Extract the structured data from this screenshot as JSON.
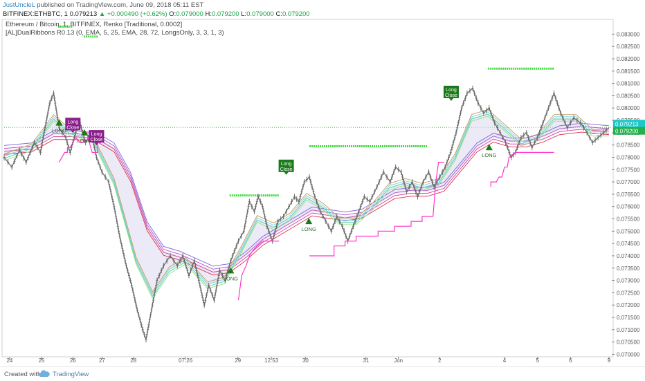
{
  "header": {
    "author": "JustUncleL",
    "published": "published on TradingView.com, June 09, 2018 05:11 EST",
    "symbol": "BITFINEX:ETHBTC, 1",
    "price": "0.079213",
    "change": "+0.000490 (+0.62%)",
    "ohlc": [
      {
        "label": "O:",
        "value": "0.079000"
      },
      {
        "label": "H:",
        "value": "0.079200"
      },
      {
        "label": "L:",
        "value": "0.079000"
      },
      {
        "label": "C:",
        "value": "0.079200"
      }
    ]
  },
  "legend": {
    "line1": "Ethereum / Bitcoin, 1, BITFINEX, Renko [Traditional, 0.0002]",
    "line2": "[AL]DualRibbons R0.13 (0, EMA, 5, 25, EMA, 28, 72, LongsOnly, 3, 3, 1, 3)"
  },
  "footer": {
    "created_with": "Created with",
    "brand": "TradingView"
  },
  "colors": {
    "price_tag": "#1ec8c8",
    "current_tag": "#22b14c",
    "candle": "#6b6b6b",
    "upper_band": "#ff33cc",
    "long_marker": "#1b7a1b",
    "close_marker_purple": "#8b1f8b",
    "close_marker_green": "#1b7a1b",
    "level_green": "#3fd93f"
  },
  "chart_data": {
    "type": "line",
    "title": "Ethereum / Bitcoin, 1, BITFINEX, Renko [Traditional, 0.0002]",
    "ylim": [
      0.0699,
      0.0836
    ],
    "y_ticks": [
      "0.083000",
      "0.082500",
      "0.082000",
      "0.081500",
      "0.081000",
      "0.080500",
      "0.080000",
      "0.079500",
      "0.079000",
      "0.078500",
      "0.078000",
      "0.077500",
      "0.077000",
      "0.076500",
      "0.076000",
      "0.075500",
      "0.075000",
      "0.074500",
      "0.074000",
      "0.073500",
      "0.073000",
      "0.072500",
      "0.072000",
      "0.071500",
      "0.071000",
      "0.070500",
      "0.070000"
    ],
    "price_tags": [
      "0.079213",
      "0.079200"
    ],
    "current_price": 0.079213,
    "x_ticks": [
      "24",
      "25",
      "26",
      "27",
      "28",
      "07:26",
      "29",
      "12:53",
      "30",
      "31",
      "Jun",
      "2",
      "4",
      "5",
      "6",
      "9"
    ],
    "x_tick_pos": [
      0.01,
      0.068,
      0.125,
      0.178,
      0.235,
      0.33,
      0.425,
      0.486,
      0.548,
      0.658,
      0.717,
      0.792,
      0.91,
      0.97,
      1.03,
      1.1
    ],
    "close_series": [
      [
        0,
        0.078
      ],
      [
        0.014,
        0.0776
      ],
      [
        0.028,
        0.0783
      ],
      [
        0.04,
        0.0778
      ],
      [
        0.055,
        0.0786
      ],
      [
        0.066,
        0.0782
      ],
      [
        0.076,
        0.0794
      ],
      [
        0.083,
        0.0802
      ],
      [
        0.09,
        0.0806
      ],
      [
        0.1,
        0.0792
      ],
      [
        0.112,
        0.0788
      ],
      [
        0.12,
        0.0782
      ],
      [
        0.13,
        0.079
      ],
      [
        0.138,
        0.0794
      ],
      [
        0.148,
        0.0786
      ],
      [
        0.158,
        0.079
      ],
      [
        0.168,
        0.078
      ],
      [
        0.178,
        0.0774
      ],
      [
        0.19,
        0.077
      ],
      [
        0.2,
        0.076
      ],
      [
        0.21,
        0.0748
      ],
      [
        0.222,
        0.0736
      ],
      [
        0.232,
        0.0728
      ],
      [
        0.242,
        0.0718
      ],
      [
        0.252,
        0.071
      ],
      [
        0.258,
        0.0706
      ],
      [
        0.268,
        0.0718
      ],
      [
        0.278,
        0.073
      ],
      [
        0.29,
        0.0736
      ],
      [
        0.302,
        0.074
      ],
      [
        0.315,
        0.0736
      ],
      [
        0.325,
        0.074
      ],
      [
        0.336,
        0.0732
      ],
      [
        0.346,
        0.0738
      ],
      [
        0.356,
        0.0728
      ],
      [
        0.364,
        0.072
      ],
      [
        0.372,
        0.0728
      ],
      [
        0.382,
        0.0722
      ],
      [
        0.392,
        0.0734
      ],
      [
        0.402,
        0.073
      ],
      [
        0.412,
        0.0738
      ],
      [
        0.426,
        0.0746
      ],
      [
        0.436,
        0.075
      ],
      [
        0.446,
        0.0762
      ],
      [
        0.455,
        0.0758
      ],
      [
        0.462,
        0.0764
      ],
      [
        0.47,
        0.076
      ],
      [
        0.478,
        0.0752
      ],
      [
        0.488,
        0.0746
      ],
      [
        0.498,
        0.0754
      ],
      [
        0.508,
        0.0756
      ],
      [
        0.518,
        0.076
      ],
      [
        0.528,
        0.0764
      ],
      [
        0.536,
        0.0762
      ],
      [
        0.546,
        0.077
      ],
      [
        0.555,
        0.0772
      ],
      [
        0.565,
        0.0764
      ],
      [
        0.575,
        0.0758
      ],
      [
        0.585,
        0.0754
      ],
      [
        0.595,
        0.075
      ],
      [
        0.605,
        0.0756
      ],
      [
        0.615,
        0.0752
      ],
      [
        0.625,
        0.0746
      ],
      [
        0.635,
        0.0752
      ],
      [
        0.645,
        0.0758
      ],
      [
        0.655,
        0.0764
      ],
      [
        0.665,
        0.0762
      ],
      [
        0.678,
        0.0768
      ],
      [
        0.69,
        0.0774
      ],
      [
        0.702,
        0.077
      ],
      [
        0.712,
        0.0776
      ],
      [
        0.722,
        0.0774
      ],
      [
        0.732,
        0.0766
      ],
      [
        0.742,
        0.077
      ],
      [
        0.752,
        0.0764
      ],
      [
        0.762,
        0.077
      ],
      [
        0.772,
        0.0774
      ],
      [
        0.782,
        0.0768
      ],
      [
        0.792,
        0.0772
      ],
      [
        0.802,
        0.0776
      ],
      [
        0.812,
        0.0782
      ],
      [
        0.822,
        0.079
      ],
      [
        0.832,
        0.08
      ],
      [
        0.842,
        0.0806
      ],
      [
        0.852,
        0.0808
      ],
      [
        0.862,
        0.0802
      ],
      [
        0.872,
        0.0798
      ],
      [
        0.882,
        0.08
      ],
      [
        0.892,
        0.0794
      ],
      [
        0.902,
        0.079
      ],
      [
        0.912,
        0.0786
      ],
      [
        0.922,
        0.078
      ],
      [
        0.93,
        0.0782
      ],
      [
        0.94,
        0.0788
      ],
      [
        0.95,
        0.079
      ],
      [
        0.96,
        0.0784
      ],
      [
        0.97,
        0.0788
      ],
      [
        0.98,
        0.0794
      ],
      [
        0.99,
        0.08
      ],
      [
        1.0,
        0.0806
      ],
      [
        1.012,
        0.0798
      ],
      [
        1.024,
        0.0792
      ],
      [
        1.036,
        0.0796
      ],
      [
        1.048,
        0.0794
      ],
      [
        1.06,
        0.079
      ],
      [
        1.07,
        0.0786
      ],
      [
        1.08,
        0.0788
      ],
      [
        1.09,
        0.079
      ],
      [
        1.1,
        0.07921
      ]
    ],
    "ribbon_fast": [
      [
        0,
        0.078
      ],
      [
        0.05,
        0.0784
      ],
      [
        0.09,
        0.0796
      ],
      [
        0.12,
        0.079
      ],
      [
        0.16,
        0.0788
      ],
      [
        0.2,
        0.077
      ],
      [
        0.24,
        0.0738
      ],
      [
        0.27,
        0.0724
      ],
      [
        0.3,
        0.0734
      ],
      [
        0.33,
        0.0738
      ],
      [
        0.37,
        0.0728
      ],
      [
        0.4,
        0.073
      ],
      [
        0.43,
        0.0742
      ],
      [
        0.46,
        0.0755
      ],
      [
        0.49,
        0.0752
      ],
      [
        0.52,
        0.0756
      ],
      [
        0.55,
        0.0764
      ],
      [
        0.58,
        0.076
      ],
      [
        0.61,
        0.0754
      ],
      [
        0.64,
        0.0754
      ],
      [
        0.67,
        0.076
      ],
      [
        0.7,
        0.0768
      ],
      [
        0.73,
        0.077
      ],
      [
        0.76,
        0.0768
      ],
      [
        0.79,
        0.077
      ],
      [
        0.82,
        0.078
      ],
      [
        0.85,
        0.0796
      ],
      [
        0.88,
        0.0798
      ],
      [
        0.91,
        0.0792
      ],
      [
        0.94,
        0.0786
      ],
      [
        0.97,
        0.0788
      ],
      [
        1.0,
        0.0796
      ],
      [
        1.04,
        0.0796
      ],
      [
        1.07,
        0.079
      ],
      [
        1.1,
        0.079
      ]
    ],
    "ribbon_slow": [
      [
        0,
        0.0783
      ],
      [
        0.05,
        0.0784
      ],
      [
        0.09,
        0.0789
      ],
      [
        0.13,
        0.0789
      ],
      [
        0.17,
        0.0788
      ],
      [
        0.2,
        0.0784
      ],
      [
        0.23,
        0.0772
      ],
      [
        0.26,
        0.0752
      ],
      [
        0.29,
        0.0742
      ],
      [
        0.32,
        0.074
      ],
      [
        0.35,
        0.0737
      ],
      [
        0.38,
        0.0734
      ],
      [
        0.41,
        0.0735
      ],
      [
        0.44,
        0.074
      ],
      [
        0.47,
        0.0746
      ],
      [
        0.5,
        0.075
      ],
      [
        0.53,
        0.0754
      ],
      [
        0.56,
        0.0758
      ],
      [
        0.59,
        0.0757
      ],
      [
        0.62,
        0.0756
      ],
      [
        0.65,
        0.0757
      ],
      [
        0.68,
        0.0761
      ],
      [
        0.71,
        0.0765
      ],
      [
        0.74,
        0.0766
      ],
      [
        0.77,
        0.0766
      ],
      [
        0.8,
        0.0768
      ],
      [
        0.83,
        0.0776
      ],
      [
        0.86,
        0.0784
      ],
      [
        0.89,
        0.0788
      ],
      [
        0.92,
        0.0786
      ],
      [
        0.95,
        0.0786
      ],
      [
        0.98,
        0.0788
      ],
      [
        1.01,
        0.0791
      ],
      [
        1.05,
        0.0792
      ],
      [
        1.1,
        0.0791
      ]
    ],
    "upper_band": [
      [
        0.1,
        0.0778
      ],
      [
        0.11,
        0.0782
      ],
      [
        0.115,
        0.0782
      ],
      [
        0.115,
        0.0784
      ],
      [
        0.12,
        0.0784
      ],
      [
        0.13,
        0.0788
      ],
      [
        0.138,
        0.0786
      ],
      [
        0.145,
        0.0786
      ],
      [
        0.145,
        0.079
      ],
      [
        0.15,
        0.079
      ],
      [
        0.16,
        0.0782
      ],
      [
        0.17,
        0.0782
      ],
      [
        0.17,
        0.0786
      ],
      [
        0.176,
        0.0786
      ]
    ],
    "lower_stop": [
      [
        0.426,
        0.0722
      ],
      [
        0.432,
        0.0732
      ],
      [
        0.44,
        0.0736
      ],
      [
        0.446,
        0.074
      ],
      [
        0.452,
        0.0742
      ],
      [
        0.46,
        0.0744
      ],
      [
        0.47,
        0.0746
      ],
      [
        0.5,
        0.0746
      ]
    ],
    "stop2": [
      [
        0.555,
        0.074
      ],
      [
        0.6,
        0.074
      ],
      [
        0.6,
        0.0744
      ],
      [
        0.62,
        0.0744
      ],
      [
        0.62,
        0.0746
      ],
      [
        0.64,
        0.0746
      ],
      [
        0.64,
        0.0748
      ],
      [
        0.68,
        0.0748
      ],
      [
        0.68,
        0.075
      ],
      [
        0.71,
        0.075
      ],
      [
        0.71,
        0.0752
      ],
      [
        0.74,
        0.0752
      ],
      [
        0.74,
        0.0754
      ],
      [
        0.76,
        0.0754
      ],
      [
        0.76,
        0.0756
      ],
      [
        0.78,
        0.0756
      ],
      [
        0.785,
        0.077
      ],
      [
        0.79,
        0.0778
      ],
      [
        0.8,
        0.0778
      ]
    ],
    "stop3": [
      [
        0.885,
        0.0768
      ],
      [
        0.885,
        0.077
      ],
      [
        0.895,
        0.077
      ],
      [
        0.9,
        0.0772
      ],
      [
        0.905,
        0.0772
      ],
      [
        0.91,
        0.0776
      ],
      [
        0.915,
        0.0776
      ],
      [
        0.918,
        0.078
      ],
      [
        0.93,
        0.0782
      ],
      [
        1.0,
        0.0782
      ]
    ],
    "green_levels": [
      {
        "y": 0.0833,
        "x0": 0.098,
        "x1": 0.125
      },
      {
        "y": 0.0829,
        "x0": 0.145,
        "x1": 0.17
      },
      {
        "y": 0.07645,
        "x0": 0.41,
        "x1": 0.5
      },
      {
        "y": 0.07845,
        "x0": 0.555,
        "x1": 0.77
      },
      {
        "y": 0.0816,
        "x0": 0.88,
        "x1": 1.0
      }
    ],
    "signals": [
      {
        "label": "LONG",
        "x": 0.1,
        "y": 0.0794,
        "kind": "long"
      },
      {
        "label": "LONG",
        "x": 0.146,
        "y": 0.079,
        "kind": "long"
      },
      {
        "label": "Long\nClose",
        "x": 0.125,
        "y": 0.0791,
        "kind": "close-purple"
      },
      {
        "label": "Long\nClose",
        "x": 0.168,
        "y": 0.0786,
        "kind": "close-purple"
      },
      {
        "label": "LONG",
        "x": 0.412,
        "y": 0.0734,
        "kind": "long"
      },
      {
        "label": "Long\nClose",
        "x": 0.513,
        "y": 0.0774,
        "kind": "close-green"
      },
      {
        "label": "LONG",
        "x": 0.554,
        "y": 0.0754,
        "kind": "long"
      },
      {
        "label": "Long\nClose",
        "x": 0.813,
        "y": 0.0804,
        "kind": "close-green"
      },
      {
        "label": "LONG",
        "x": 0.882,
        "y": 0.0784,
        "kind": "long"
      }
    ]
  }
}
